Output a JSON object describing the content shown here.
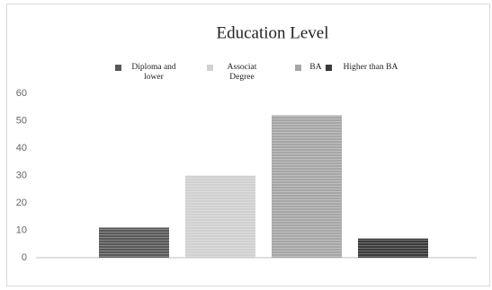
{
  "chart_data": {
    "type": "bar",
    "title": "Education Level",
    "series": [
      {
        "name": "Diploma and lower",
        "color": "#595959",
        "values": [
          11
        ]
      },
      {
        "name": "Associat Degree",
        "color": "#d0d0d0",
        "values": [
          30
        ]
      },
      {
        "name": "BA",
        "color": "#a6a6a6",
        "values": [
          52
        ]
      },
      {
        "name": "Higher than BA",
        "color": "#3a3a3a",
        "values": [
          7
        ]
      }
    ],
    "ylim": [
      0,
      60
    ],
    "yticks": [
      0,
      10,
      20,
      30,
      40,
      50,
      60
    ],
    "grid": false,
    "legend": "top"
  }
}
